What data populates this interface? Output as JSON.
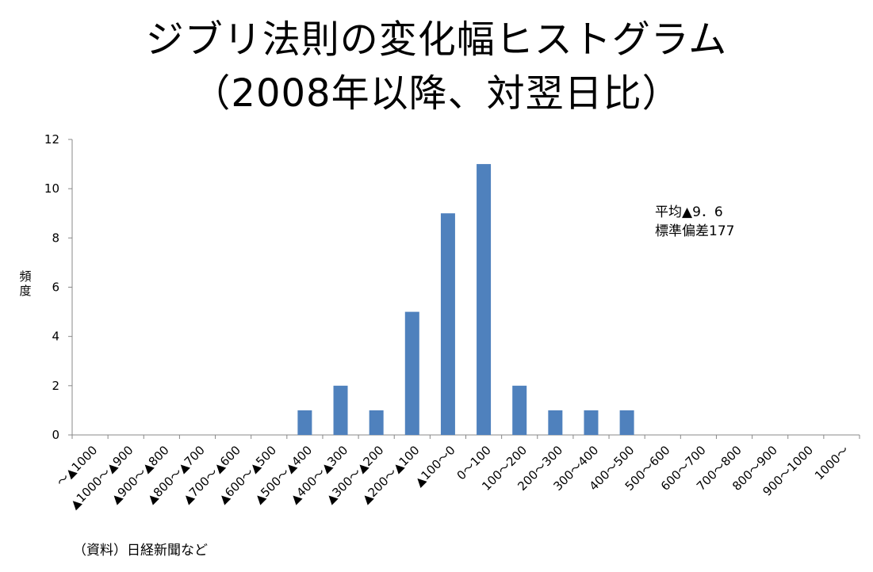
{
  "chart_data": {
    "type": "bar",
    "title": "ジブリ法則の変化幅ヒストグラム",
    "subtitle": "（2008年以降、対翌日比）",
    "ylabel": "頻度",
    "xlabel": "",
    "ylim": [
      0,
      12
    ],
    "yticks": [
      0,
      2,
      4,
      6,
      8,
      10,
      12
    ],
    "grid": false,
    "categories": [
      "～▲1000",
      "▲1000～▲900",
      "▲900～▲800",
      "▲800～▲700",
      "▲700～▲600",
      "▲600～▲500",
      "▲500～▲400",
      "▲400～▲300",
      "▲300～▲200",
      "▲200～▲100",
      "▲100～0",
      "0～100",
      "100～200",
      "200～300",
      "300～400",
      "400～500",
      "500～600",
      "600～700",
      "700～800",
      "800～900",
      "900～1000",
      "1000～"
    ],
    "values": [
      0,
      0,
      0,
      0,
      0,
      0,
      1,
      2,
      1,
      5,
      9,
      11,
      2,
      1,
      1,
      1,
      0,
      0,
      0,
      0,
      0,
      0
    ],
    "bar_color": "#4f81bd",
    "annotations": [
      "平均▲9．6",
      "標準偏差177"
    ]
  },
  "source": "（資料）日経新聞など"
}
